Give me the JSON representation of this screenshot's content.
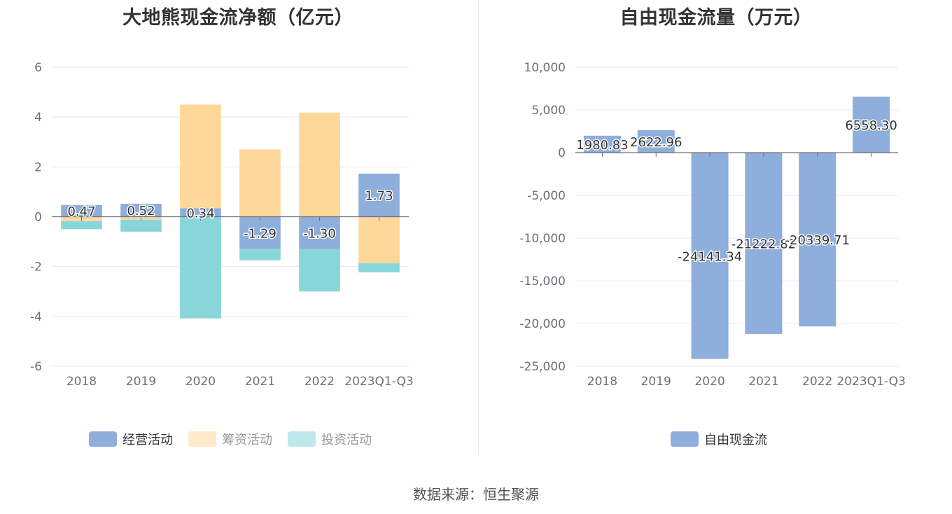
{
  "left_title": "大地熊现金流净额（亿元）",
  "right_title": "自由现金流量（万元）",
  "source": "数据来源：恒生聚源",
  "chart_data": [
    {
      "type": "bar",
      "stacked": true,
      "title": "大地熊现金流净额（亿元）",
      "categories": [
        "2018",
        "2019",
        "2020",
        "2021",
        "2022",
        "2023Q1-Q3"
      ],
      "ylim": [
        -6,
        6
      ],
      "yticks": [
        -6,
        -4,
        -2,
        0,
        2,
        4,
        6
      ],
      "ytick_labels": [
        "-6",
        "-4",
        "-2",
        "0",
        "2",
        "4",
        "6"
      ],
      "grid": true,
      "legend_position": "bottom",
      "label_series": "经营活动",
      "series": [
        {
          "name": "经营活动",
          "color": "#8eaedb",
          "values": [
            0.47,
            0.52,
            0.34,
            -1.29,
            -1.3,
            1.73
          ],
          "labels": [
            "0.47",
            "0.52",
            "0.34",
            "-1.29",
            "-1.30",
            "1.73"
          ]
        },
        {
          "name": "筹资活动",
          "color": "#fed89b",
          "values": [
            -0.18,
            -0.12,
            4.16,
            2.7,
            4.18,
            -1.87
          ]
        },
        {
          "name": "投资活动",
          "color": "#88d6da",
          "values": [
            -0.32,
            -0.48,
            -4.08,
            -0.46,
            -1.7,
            -0.36
          ]
        }
      ]
    },
    {
      "type": "bar",
      "title": "自由现金流量（万元）",
      "categories": [
        "2018",
        "2019",
        "2020",
        "2021",
        "2022",
        "2023Q1-Q3"
      ],
      "ylim": [
        -25000,
        10000
      ],
      "yticks": [
        -25000,
        -20000,
        -15000,
        -10000,
        -5000,
        0,
        5000,
        10000
      ],
      "ytick_labels": [
        "-25,000",
        "-20,000",
        "-15,000",
        "-10,000",
        "-5,000",
        "0",
        "5,000",
        "10,000"
      ],
      "grid": true,
      "legend_position": "bottom",
      "series": [
        {
          "name": "自由现金流",
          "color": "#8eaedb",
          "values": [
            1980.83,
            2622.96,
            -24141.34,
            -21222.82,
            -20339.71,
            6558.3
          ],
          "labels": [
            "1980.83",
            "2622.96",
            "-24141.34",
            "-21222.82",
            "-20339.71",
            "6558.30"
          ]
        }
      ]
    }
  ]
}
